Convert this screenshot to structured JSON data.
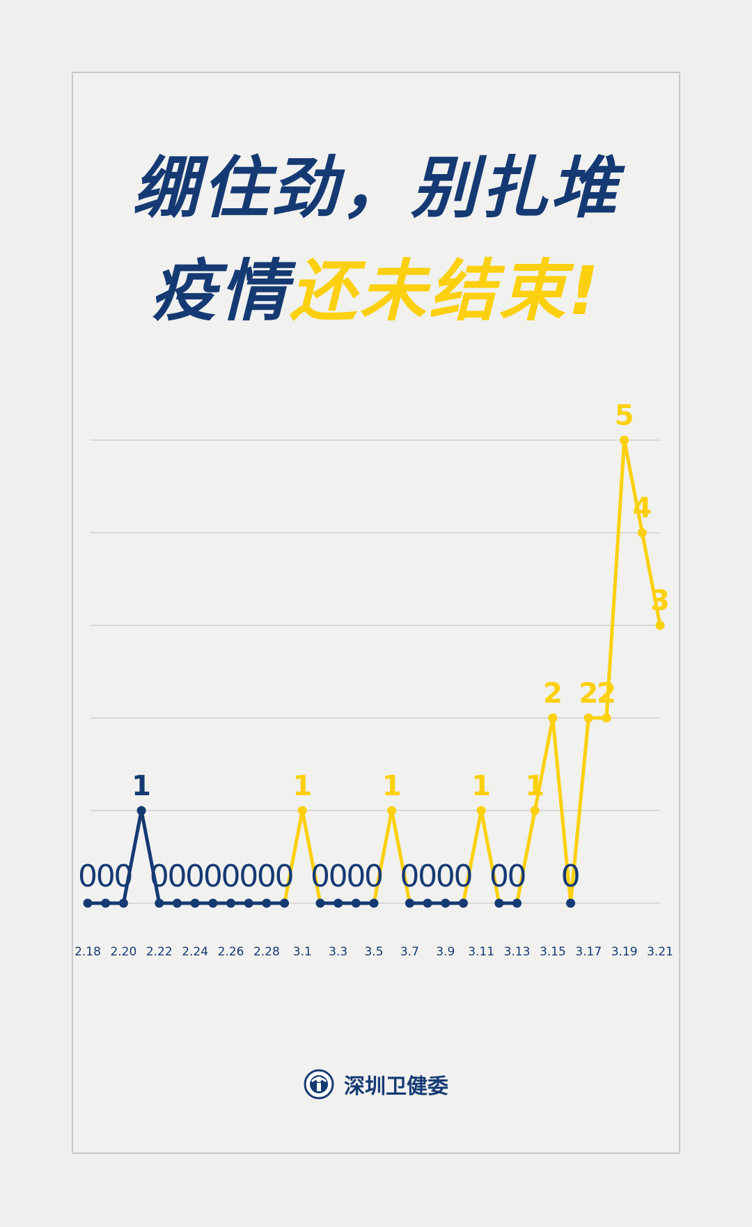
{
  "title": {
    "line1": "绷住劲，别扎堆",
    "line2_normal": "疫情",
    "line2_highlight": "还未结束!"
  },
  "footer": {
    "org_name": "深圳卫健委",
    "logo_text": "SZHC"
  },
  "colors": {
    "primary": "#153a73",
    "accent": "#fcd00f",
    "grid": "#c8c8c8"
  },
  "chart_data": {
    "type": "line",
    "x_tick_labels": [
      "2.18",
      "",
      "2.20",
      "",
      "2.22",
      "",
      "2.24",
      "",
      "2.26",
      "",
      "2.28",
      "",
      "3.1",
      "",
      "3.3",
      "",
      "3.5",
      "",
      "3.7",
      "",
      "3.9",
      "",
      "3.11",
      "",
      "3.13",
      "",
      "3.15",
      "",
      "3.17",
      "",
      "3.19",
      "",
      "3.21"
    ],
    "values": [
      0,
      0,
      0,
      1,
      0,
      0,
      0,
      0,
      0,
      0,
      0,
      0,
      1,
      0,
      0,
      0,
      0,
      1,
      0,
      0,
      0,
      0,
      1,
      0,
      0,
      1,
      2,
      0,
      2,
      2,
      5,
      4,
      3
    ],
    "highlight_from_index": 11,
    "ylim": [
      0,
      5
    ],
    "grid": true,
    "data_labels": true
  }
}
